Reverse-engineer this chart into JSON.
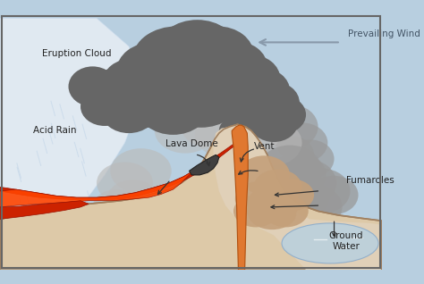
{
  "bg_color": "#b8cfe0",
  "labels": {
    "eruption_cloud": "Eruption Cloud",
    "prevailing_wind": "Prevailing Wind",
    "acid_rain": "Acid Rain",
    "lava_dome": "Lava Dome",
    "vent": "Vent",
    "fumaroles": "Fumaroles",
    "ground_water": "Ground\nWater"
  },
  "colors": {
    "sky": "#b8cfe0",
    "mountain_fill": "#ddc9a8",
    "mountain_outline": "#a08060",
    "mountain_light": "#e8ddd0",
    "lava_red": "#cc2200",
    "lava_orange": "#e07830",
    "lava_bright": "#ff4400",
    "cloud_dark": "#666666",
    "cloud_mid": "#888888",
    "cloud_light": "#aaaaaa",
    "ash_cloud": "#999999",
    "ash_light": "#bbbbbb",
    "acid_white": "#e8eef4",
    "fumarole_tan": "#c4a07a",
    "water_blue": "#b0ccd8",
    "arrow_dark": "#333333",
    "wind_arrow": "#8899aa",
    "border": "#777777",
    "ground_dark": "#b09070"
  }
}
